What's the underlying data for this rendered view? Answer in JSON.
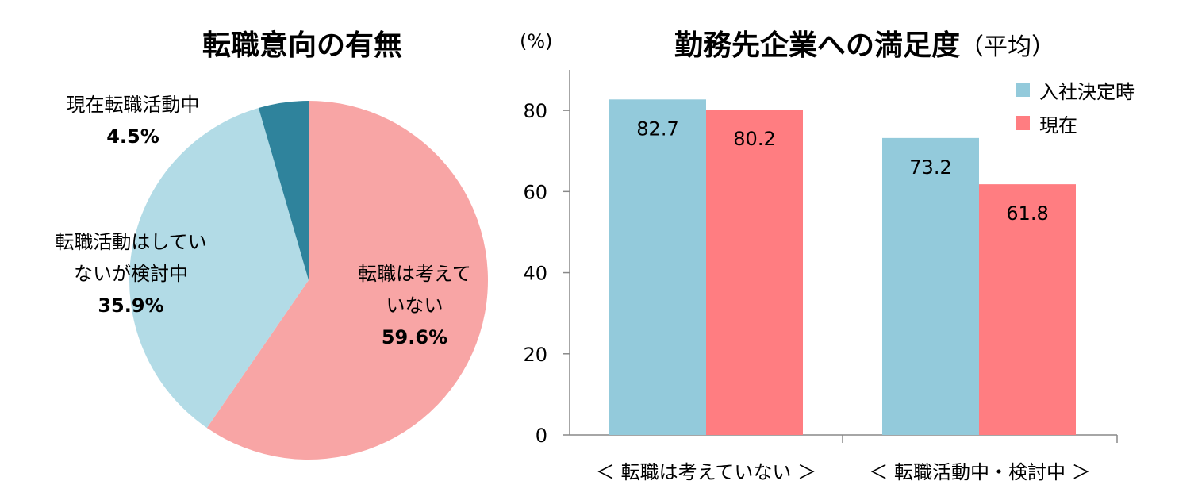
{
  "colors": {
    "pie_not_considering": "#f8a5a5",
    "pie_considering": "#b2dbe6",
    "pie_active": "#2f839c",
    "bar_at_entry": "#93cadb",
    "bar_current": "#ff7d81",
    "axis": "#888888"
  },
  "pie_title": "転職意向の有無",
  "bar_title": {
    "main": "勤務先企業への満足度",
    "suffix": "（平均）"
  },
  "unit_label": "(%)",
  "pie_labels": {
    "not_considering": {
      "line1": "転職は考えて",
      "line2": "いない",
      "value": "59.6%"
    },
    "considering": {
      "line1": "転職活動はしてい",
      "line2": "ないが検討中",
      "value": "35.9%"
    },
    "active": {
      "line1": "現在転職活動中",
      "value": "4.5%"
    }
  },
  "legend": {
    "at_entry": "入社決定時",
    "current": "現在"
  },
  "x_categories": {
    "group1": "＜ 転職は考えていない ＞",
    "group2": "＜ 転職活動中・検討中 ＞"
  },
  "chart_data": [
    {
      "type": "pie",
      "title": "転職意向の有無",
      "slices": [
        {
          "label": "転職は考えていない",
          "value": 59.6
        },
        {
          "label": "転職活動はしていないが検討中",
          "value": 35.9
        },
        {
          "label": "現在転職活動中",
          "value": 4.5
        }
      ]
    },
    {
      "type": "bar",
      "title": "勤務先企業への満足度（平均）",
      "ylabel": "(%)",
      "categories": [
        "＜ 転職は考えていない ＞",
        "＜ 転職活動中・検討中 ＞"
      ],
      "series": [
        {
          "name": "入社決定時",
          "values": [
            82.7,
            73.2
          ]
        },
        {
          "name": "現在",
          "values": [
            80.2,
            61.8
          ]
        }
      ],
      "ylim": [
        0,
        90
      ],
      "yticks": [
        0,
        20,
        40,
        60,
        80
      ],
      "grid": false,
      "legend": "top-right"
    }
  ]
}
